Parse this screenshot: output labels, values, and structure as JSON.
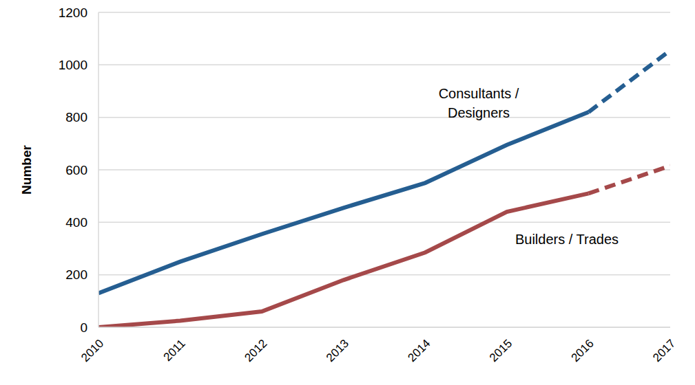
{
  "chart_data": {
    "type": "line",
    "x": [
      2010,
      2011,
      2012,
      2013,
      2014,
      2015,
      2016,
      2017
    ],
    "series": [
      {
        "name": "Consultants / Designers",
        "color": "#255e91",
        "line_style": "solid",
        "values": [
          130,
          250,
          355,
          455,
          550,
          695,
          820,
          null
        ]
      },
      {
        "name": "Consultants / Designers",
        "color": "#255e91",
        "line_style": "dashed",
        "values": [
          null,
          null,
          null,
          null,
          null,
          null,
          820,
          1055
        ]
      },
      {
        "name": "Builders / Trades",
        "color": "#a5494a",
        "line_style": "solid",
        "values": [
          0,
          25,
          60,
          180,
          285,
          440,
          510,
          null
        ]
      },
      {
        "name": "Builders / Trades",
        "color": "#a5494a",
        "line_style": "dashed",
        "values": [
          null,
          null,
          null,
          null,
          null,
          null,
          510,
          615
        ]
      }
    ],
    "y_label": "Number",
    "xlim": [
      2010,
      2017
    ],
    "xticks": [
      2010,
      2011,
      2012,
      2013,
      2014,
      2015,
      2016,
      2017
    ],
    "ylim": [
      0,
      1200
    ],
    "yticks": [
      0,
      200,
      400,
      600,
      800,
      1000,
      1200
    ],
    "grid": true
  }
}
